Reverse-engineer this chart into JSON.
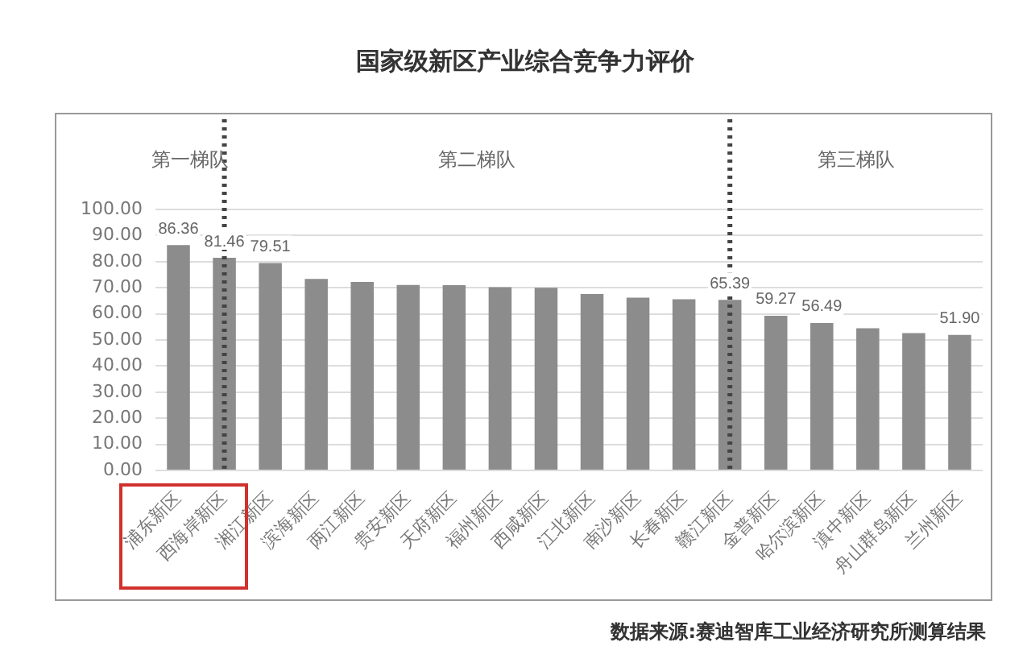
{
  "chart_data": {
    "type": "bar",
    "title": "国家级新区产业综合竞争力评价",
    "categories": [
      "浦东新区",
      "西海岸新区",
      "湘江新区",
      "滨海新区",
      "两江新区",
      "贵安新区",
      "天府新区",
      "福州新区",
      "西咸新区",
      "江北新区",
      "南沙新区",
      "长春新区",
      "赣江新区",
      "金普新区",
      "哈尔滨新区",
      "滇中新区",
      "舟山群岛新区",
      "兰州新区"
    ],
    "values": [
      86.36,
      81.46,
      79.51,
      73.4,
      72.2,
      71.1,
      71.0,
      70.2,
      70.0,
      67.6,
      66.2,
      65.6,
      65.39,
      59.27,
      56.49,
      54.5,
      52.6,
      51.9
    ],
    "value_labels": [
      "86.36",
      "81.46",
      "79.51",
      null,
      null,
      null,
      null,
      null,
      null,
      null,
      null,
      null,
      "65.39",
      "59.27",
      "56.49",
      null,
      null,
      "51.90"
    ],
    "color": "#8c8c8c",
    "ylim": [
      0,
      100
    ],
    "yticks": [
      {
        "value": 0,
        "label": "0.00"
      },
      {
        "value": 10,
        "label": "10.00"
      },
      {
        "value": 20,
        "label": "20.00"
      },
      {
        "value": 30,
        "label": "30.00"
      },
      {
        "value": 40,
        "label": "40.00"
      },
      {
        "value": 50,
        "label": "50.00"
      },
      {
        "value": 60,
        "label": "60.00"
      },
      {
        "value": 70,
        "label": "70.00"
      },
      {
        "value": 80,
        "label": "80.00"
      },
      {
        "value": 90,
        "label": "90.00"
      },
      {
        "value": 100,
        "label": "100.00"
      }
    ],
    "grid": "y",
    "ref_lines": [
      {
        "axis": "x",
        "value": "西海岸新区",
        "color": "#444444",
        "line_style": "dotted"
      },
      {
        "axis": "x",
        "value": "赣江新区",
        "color": "#444444",
        "line_style": "dotted"
      }
    ],
    "annotations": [
      "第一梯队",
      "第二梯队",
      "第三梯队",
      "数据来源:赛迪智库工业经济研究所测算结果"
    ],
    "legend": false
  }
}
